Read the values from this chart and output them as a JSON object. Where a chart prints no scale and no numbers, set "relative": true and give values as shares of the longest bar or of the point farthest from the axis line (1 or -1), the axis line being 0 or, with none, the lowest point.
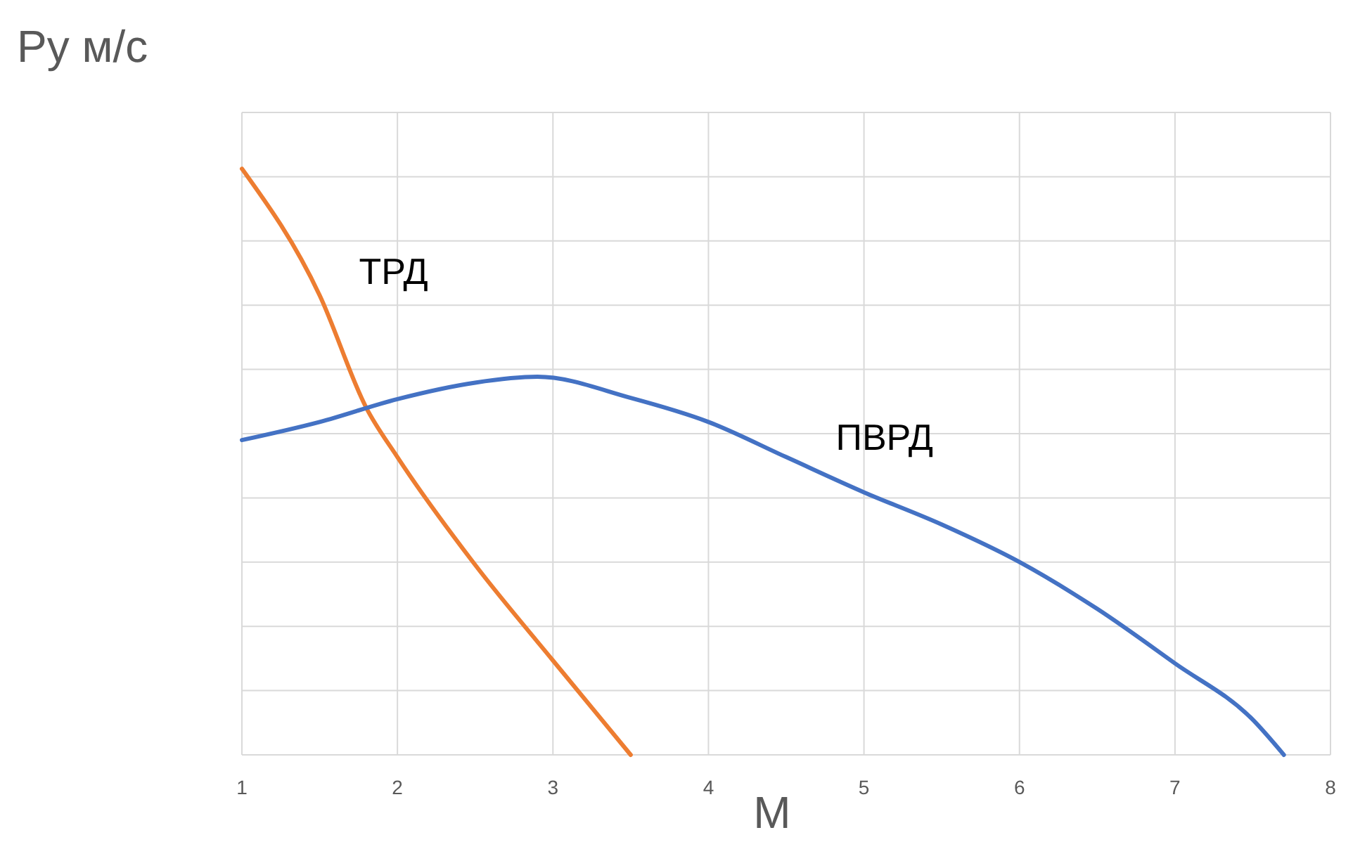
{
  "chart_data": {
    "type": "line",
    "ylabel": "Ру м/с",
    "xlabel": "M",
    "relative": true,
    "xlim": [
      1,
      8
    ],
    "xticks": [
      1,
      2,
      3,
      4,
      5,
      6,
      7,
      8
    ],
    "grid": true,
    "marker": "none",
    "line_style": "solid",
    "series": [
      {
        "name": "ТРД",
        "color": "#ed7d31",
        "x": [
          1,
          1.5,
          1.8,
          2,
          2.5,
          3,
          3.5
        ],
        "values": [
          1,
          0.784,
          0.592,
          0.508,
          0.324,
          0.161,
          0
        ]
      },
      {
        "name": "ПВРД",
        "color": "#4472c4",
        "x": [
          1,
          1.5,
          2,
          2.5,
          2.9,
          3.5,
          4,
          4.5,
          5,
          5.5,
          6,
          6.5,
          7,
          7.5,
          7.7
        ],
        "values": [
          0.537,
          0.568,
          0.607,
          0.635,
          0.645,
          0.609,
          0.568,
          0.508,
          0.448,
          0.393,
          0.329,
          0.249,
          0.156,
          0.06,
          0
        ]
      }
    ]
  }
}
